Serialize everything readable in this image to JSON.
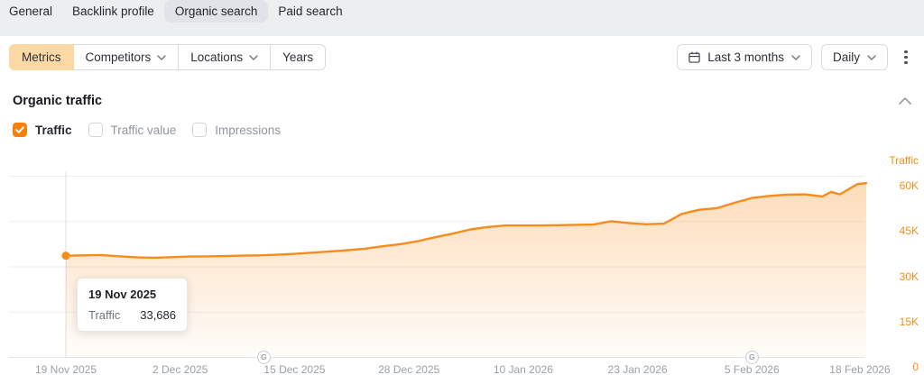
{
  "theme": {
    "accent": "#f78c1b",
    "checkbox_orange": "#f6820d",
    "metrics_button_bg": "#fbd8a4",
    "topbar_bg": "#eceef0",
    "active_tab_bg": "#e0e3e8"
  },
  "tabs": {
    "items": [
      {
        "label": "General",
        "active": false
      },
      {
        "label": "Backlink profile",
        "active": false
      },
      {
        "label": "Organic search",
        "active": true
      },
      {
        "label": "Paid search",
        "active": false
      }
    ]
  },
  "toolbar": {
    "metrics": {
      "label": "Metrics",
      "selected": true
    },
    "competitors": {
      "label": "Competitors",
      "has_dropdown": true
    },
    "locations": {
      "label": "Locations",
      "has_dropdown": true
    },
    "years": {
      "label": "Years"
    },
    "date_range": {
      "label": "Last 3 months",
      "icon": "calendar-icon"
    },
    "granularity": {
      "label": "Daily"
    }
  },
  "section": {
    "title": "Organic traffic",
    "collapsed": false
  },
  "toggles": [
    {
      "label": "Traffic",
      "checked": true
    },
    {
      "label": "Traffic value",
      "checked": false
    },
    {
      "label": "Impressions",
      "checked": false
    }
  ],
  "chart_data": {
    "type": "area",
    "title": "Organic traffic",
    "legend_position": "none",
    "grid": true,
    "x_range_days": 91,
    "series": [
      {
        "name": "Traffic",
        "points": [
          [
            0,
            33686
          ],
          [
            2,
            33800
          ],
          [
            4,
            33900
          ],
          [
            6,
            33500
          ],
          [
            8,
            33150
          ],
          [
            10,
            33000
          ],
          [
            12,
            33200
          ],
          [
            14,
            33400
          ],
          [
            16,
            33450
          ],
          [
            18,
            33550
          ],
          [
            20,
            33700
          ],
          [
            22,
            33800
          ],
          [
            24,
            34000
          ],
          [
            26,
            34300
          ],
          [
            28,
            34700
          ],
          [
            30,
            35100
          ],
          [
            32,
            35500
          ],
          [
            34,
            36000
          ],
          [
            36,
            36800
          ],
          [
            38,
            37500
          ],
          [
            40,
            38500
          ],
          [
            42,
            39800
          ],
          [
            44,
            41000
          ],
          [
            46,
            42400
          ],
          [
            48,
            43200
          ],
          [
            50,
            43700
          ],
          [
            52,
            43700
          ],
          [
            54,
            43700
          ],
          [
            56,
            43800
          ],
          [
            58,
            43900
          ],
          [
            60,
            44000
          ],
          [
            62,
            45100
          ],
          [
            64,
            44500
          ],
          [
            66,
            44100
          ],
          [
            68,
            44300
          ],
          [
            70,
            47500
          ],
          [
            72,
            48900
          ],
          [
            74,
            49400
          ],
          [
            76,
            51200
          ],
          [
            78,
            52800
          ],
          [
            80,
            53500
          ],
          [
            82,
            53900
          ],
          [
            84,
            54000
          ],
          [
            86,
            53300
          ],
          [
            87,
            54800
          ],
          [
            88,
            54000
          ],
          [
            90,
            57400
          ],
          [
            91,
            57700
          ]
        ]
      }
    ],
    "x_ticks": [
      {
        "day": 0,
        "label": "19 Nov 2025"
      },
      {
        "day": 13,
        "label": "2 Dec 2025"
      },
      {
        "day": 26,
        "label": "15 Dec 2025"
      },
      {
        "day": 39,
        "label": "28 Dec 2025"
      },
      {
        "day": 52,
        "label": "10 Jan 2026"
      },
      {
        "day": 65,
        "label": "23 Jan 2026"
      },
      {
        "day": 78,
        "label": "5 Feb 2026"
      },
      {
        "day": 91,
        "label": "18 Feb 2026"
      }
    ],
    "y_axis": {
      "title": "Traffic",
      "position": "right",
      "min": 0,
      "max": 63500,
      "tick_labels": [
        "60K",
        "45K",
        "30K",
        "15K",
        "0"
      ],
      "tick_values": [
        60000,
        45000,
        30000,
        15000,
        0
      ]
    },
    "google_update_markers": [
      {
        "icon": "G",
        "day": 22.5
      },
      {
        "icon": "G",
        "day": 78
      }
    ],
    "highlight": {
      "day": 0,
      "date": "19 Nov 2025",
      "metric": "Traffic",
      "value": 33686,
      "value_formatted": "33,686"
    },
    "colors": {
      "line": "#f78c1b",
      "axis_labels": "#f78c1b"
    }
  }
}
